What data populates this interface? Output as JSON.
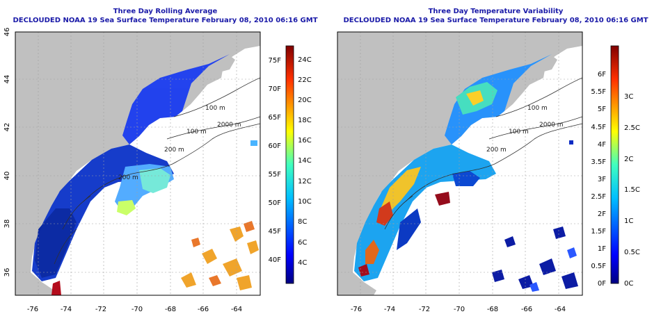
{
  "common": {
    "lat_ticks": [
      "46",
      "44",
      "42",
      "40",
      "38",
      "36"
    ],
    "lon_ticks": [
      "-76",
      "-74",
      "-72",
      "-70",
      "-68",
      "-66",
      "-64"
    ],
    "contours": [
      "100 m",
      "100 m",
      "2000 m",
      "200 m",
      "200 m"
    ]
  },
  "left": {
    "title": "Three Day Rolling Average",
    "subtitle": "DECLOUDED NOAA 19 Sea Surface Temperature February 08, 2010 06:16 GMT",
    "colorbar_f": [
      "75F",
      "70F",
      "65F",
      "60F",
      "55F",
      "50F",
      "45F",
      "40F"
    ],
    "colorbar_c": [
      "24C",
      "22C",
      "20C",
      "18C",
      "16C",
      "14C",
      "12C",
      "10C",
      "8C",
      "6C",
      "4C"
    ],
    "contour_extra": [
      "200 m"
    ]
  },
  "right": {
    "title": "Three Day Temperature Variability",
    "subtitle": "DECLOUDED NOAA 19 Sea Surface Temperature February 08, 2010 06:16 GMT",
    "colorbar_f": [
      "6F",
      "5.5F",
      "5F",
      "4.5F",
      "4F",
      "3.5F",
      "3F",
      "2.5F",
      "2F",
      "1.5F",
      "1F",
      "0.5F",
      "0F"
    ],
    "colorbar_c": [
      "3C",
      "2.5C",
      "2C",
      "1.5C",
      "1C",
      "0.5C",
      "0C"
    ]
  }
}
